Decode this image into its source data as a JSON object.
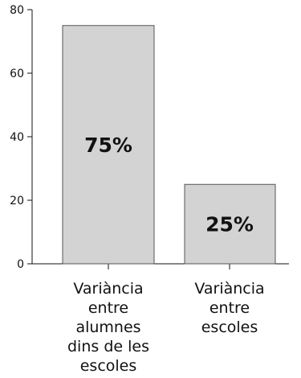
{
  "chart_data": {
    "type": "bar",
    "categories": [
      [
        "Variància",
        "entre",
        "alumnes",
        "dins de les",
        "escoles"
      ],
      [
        "Variància",
        "entre",
        "escoles"
      ]
    ],
    "values": [
      75,
      25
    ],
    "data_labels": [
      "75%",
      "25%"
    ],
    "y_ticks": [
      "0",
      "20",
      "40",
      "60",
      "80"
    ],
    "ylim": [
      0,
      80
    ],
    "grid": false,
    "legend": "none",
    "bar_color": "#d3d3d3",
    "bar_stroke": "#555555",
    "axis_color": "#111111"
  }
}
